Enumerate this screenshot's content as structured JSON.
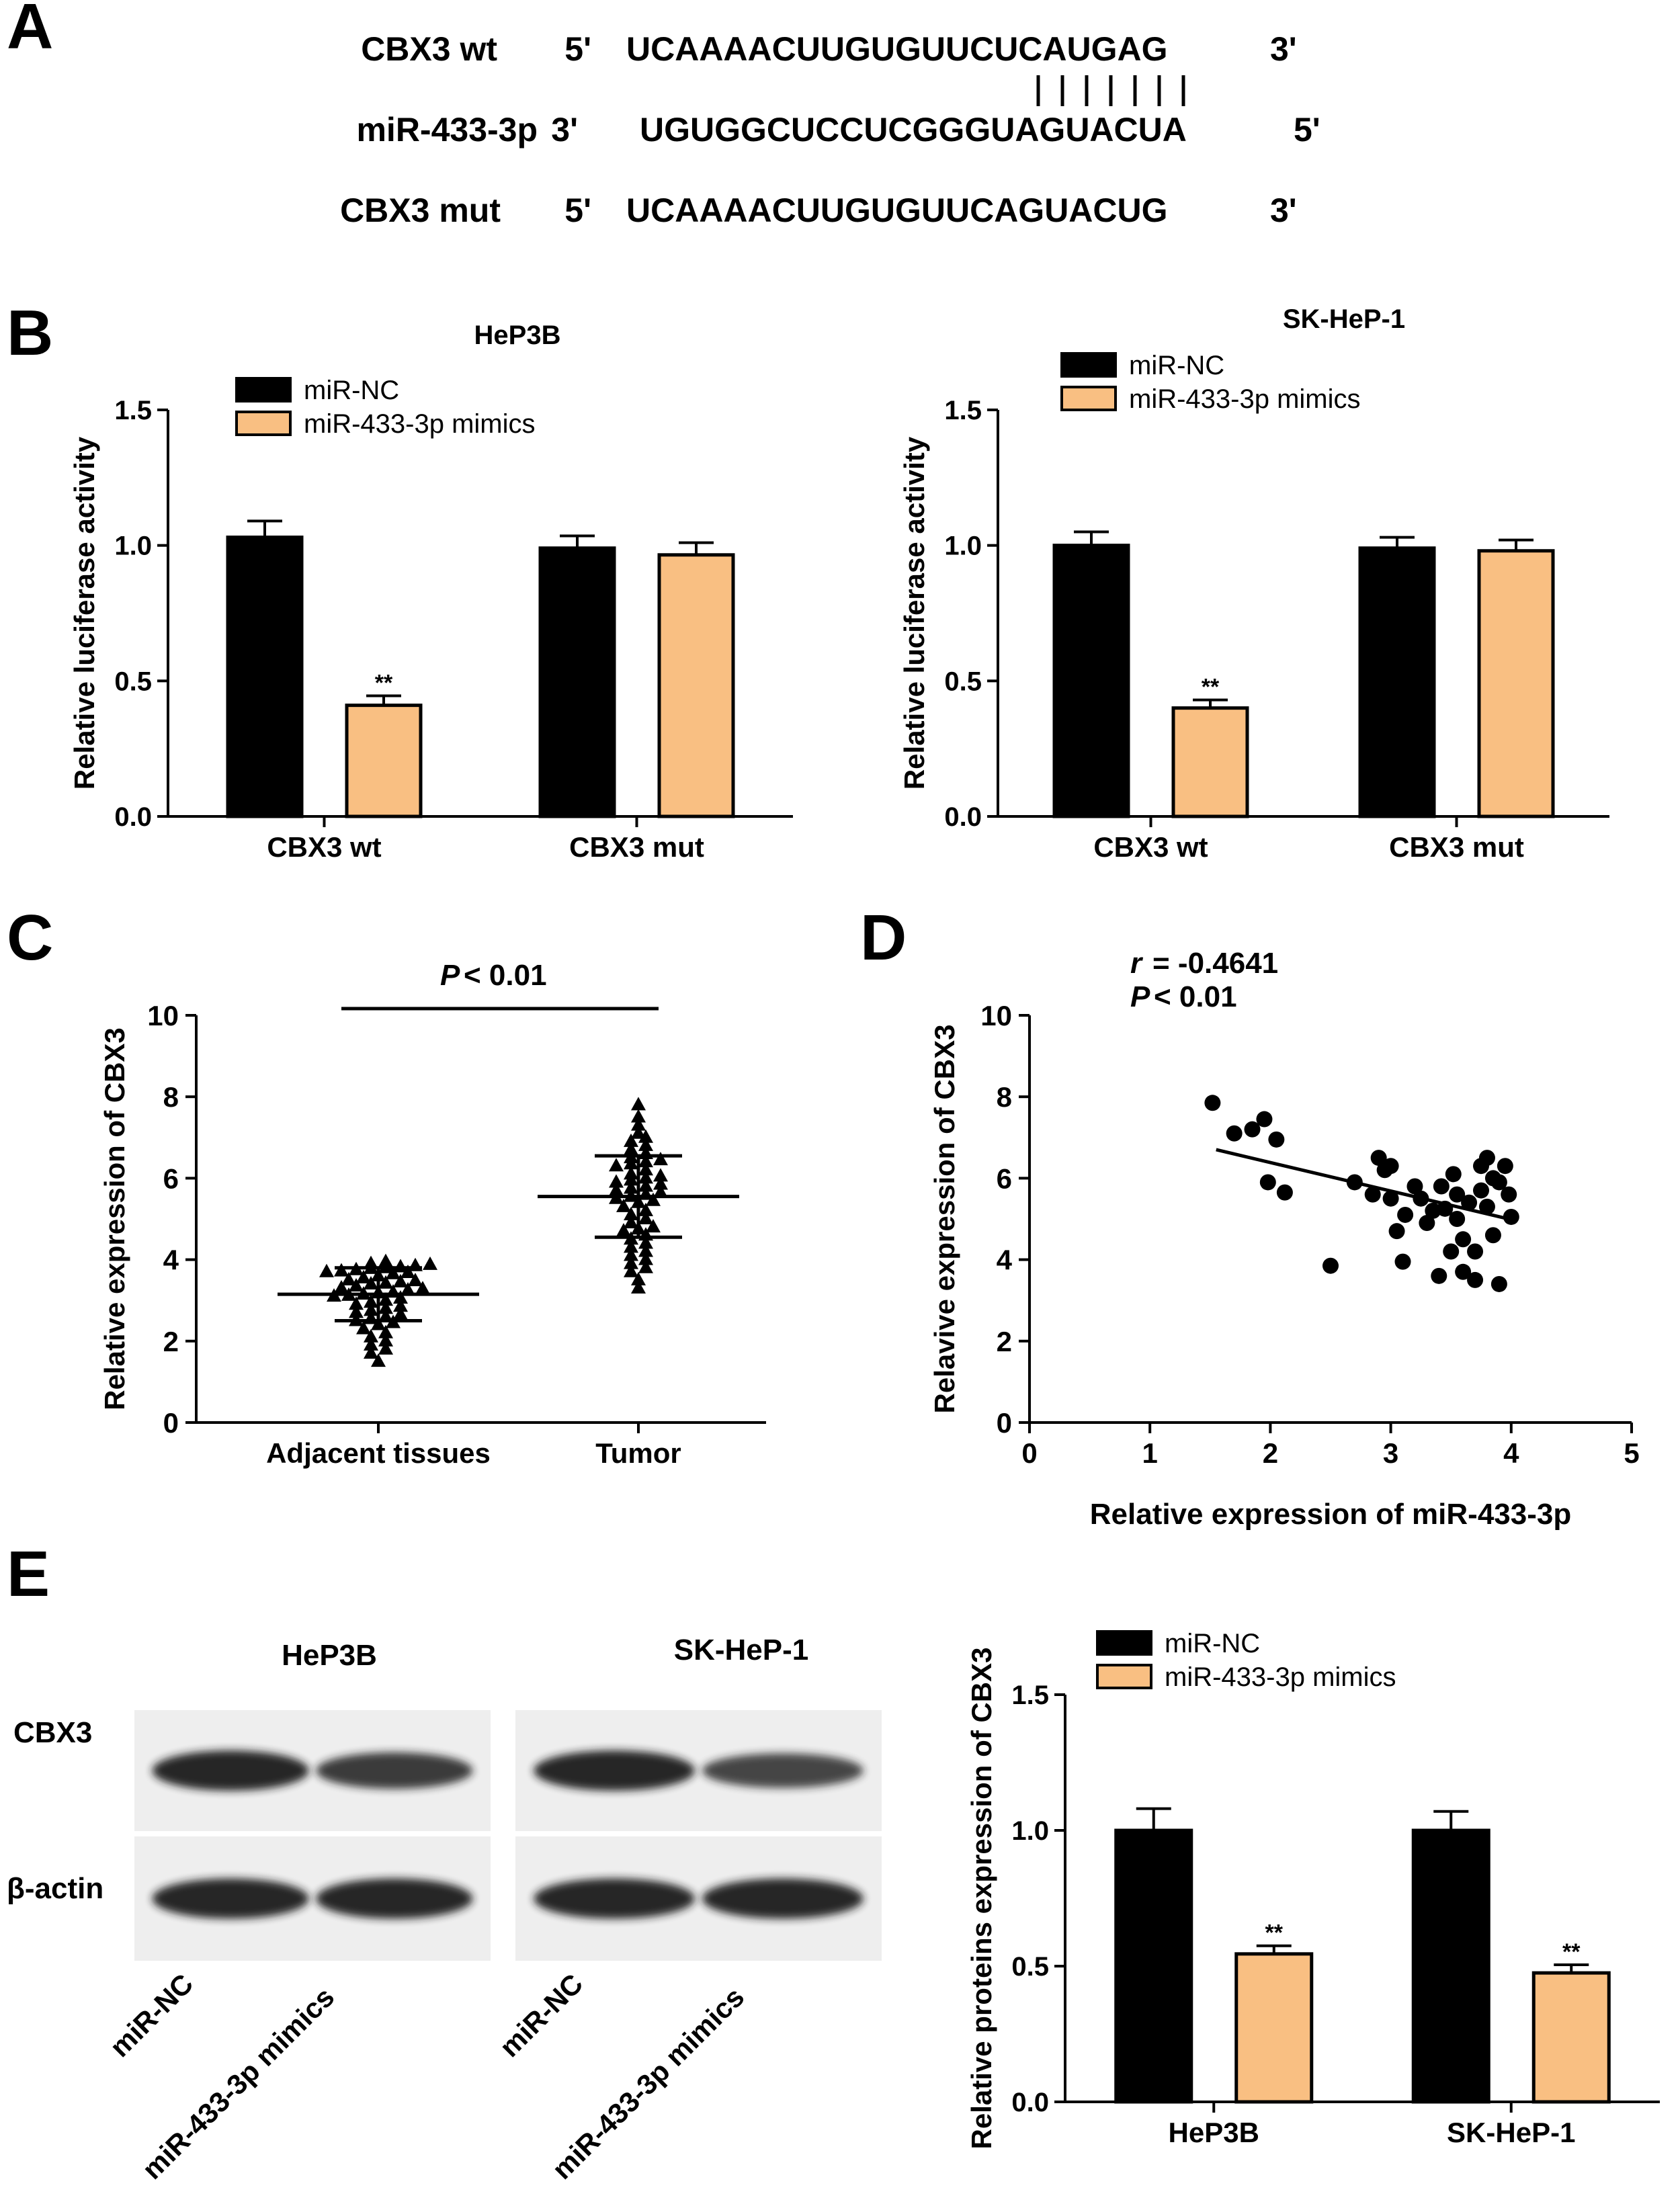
{
  "panel_letters": {
    "a": "A",
    "b": "B",
    "c": "C",
    "d": "D",
    "e": "E"
  },
  "colors": {
    "nc": "#000000",
    "mimic": "#F9BF82",
    "axis": "#000000",
    "blot_bg": "#eeeeee",
    "band": "#1e1e1e"
  },
  "sequence": {
    "rows": [
      {
        "label": "CBX3 wt",
        "p5": "5'",
        "seq": "UCAAAACUUGUGUUCUCAUGAG",
        "p3": "3'"
      },
      {
        "label": "miR-433-3p",
        "p5": "3'",
        "seq": "UGUGGCUCCUCGGGUAGUACUA",
        "p3": "5'"
      },
      {
        "label": "CBX3  mut",
        "p5": "5'",
        "seq": "UCAAAACUUGUGUUCAGUACUG",
        "p3": "3'"
      }
    ],
    "pairing_marks": 7
  },
  "chart_data": [
    {
      "type": "bar",
      "panel": "B-left",
      "title": "HeP3B",
      "ylabel": "Relative luciferase activity",
      "xlabel": "",
      "categories": [
        "CBX3 wt",
        "CBX3 mut"
      ],
      "ylim": [
        0,
        1.5
      ],
      "yticks": [
        "0.0",
        "0.5",
        "1.0",
        "1.5"
      ],
      "series": [
        {
          "name": "miR-NC",
          "values": [
            1.03,
            0.99
          ],
          "errors": [
            0.06,
            0.045
          ]
        },
        {
          "name": "miR-433-3p mimics",
          "values": [
            0.41,
            0.965
          ],
          "errors": [
            0.035,
            0.045
          ]
        }
      ],
      "annotations": [
        {
          "category": 0,
          "series": 1,
          "text": "**"
        }
      ],
      "legend": "top-left"
    },
    {
      "type": "bar",
      "panel": "B-right",
      "title": "SK-HeP-1",
      "ylabel": "Relative luciferase activity",
      "xlabel": "",
      "categories": [
        "CBX3 wt",
        "CBX3 mut"
      ],
      "ylim": [
        0,
        1.5
      ],
      "yticks": [
        "0.0",
        "0.5",
        "1.0",
        "1.5"
      ],
      "series": [
        {
          "name": "miR-NC",
          "values": [
            1.0,
            0.99
          ],
          "errors": [
            0.05,
            0.04
          ]
        },
        {
          "name": "miR-433-3p mimics",
          "values": [
            0.4,
            0.98
          ],
          "errors": [
            0.03,
            0.04
          ]
        }
      ],
      "annotations": [
        {
          "category": 0,
          "series": 1,
          "text": "**"
        }
      ],
      "legend": "top-left"
    },
    {
      "type": "scatter",
      "panel": "C",
      "ylabel": "Relative expression of CBX3",
      "xlabel": "",
      "categories": [
        "Adjacent tissues",
        "Tumor"
      ],
      "ylim": [
        0,
        10
      ],
      "yticks": [
        "0",
        "2",
        "4",
        "6",
        "8",
        "10"
      ],
      "groups": [
        {
          "name": "Adjacent tissues",
          "mean": 3.15,
          "sd": 0.65,
          "values": [
            3.95,
            3.9,
            3.88,
            3.85,
            3.82,
            3.8,
            3.78,
            3.75,
            3.72,
            3.7,
            3.68,
            3.65,
            3.6,
            3.55,
            3.5,
            3.48,
            3.45,
            3.42,
            3.4,
            3.35,
            3.3,
            3.28,
            3.25,
            3.2,
            3.18,
            3.15,
            3.12,
            3.1,
            3.05,
            3.0,
            2.95,
            2.9,
            2.85,
            2.8,
            2.75,
            2.7,
            2.65,
            2.6,
            2.55,
            2.5,
            2.45,
            2.4,
            2.3,
            2.2,
            2.1,
            2.0,
            1.9,
            1.8,
            1.7,
            1.5
          ]
        },
        {
          "name": "Tumor",
          "mean": 5.55,
          "sd": 1.0,
          "values": [
            7.8,
            7.5,
            7.3,
            7.1,
            7.0,
            6.9,
            6.8,
            6.7,
            6.6,
            6.5,
            6.45,
            6.4,
            6.35,
            6.3,
            6.2,
            6.1,
            6.05,
            6.0,
            5.95,
            5.9,
            5.85,
            5.8,
            5.75,
            5.7,
            5.65,
            5.6,
            5.55,
            5.5,
            5.45,
            5.4,
            5.3,
            5.2,
            5.1,
            5.0,
            4.9,
            4.8,
            4.75,
            4.7,
            4.6,
            4.5,
            4.4,
            4.3,
            4.2,
            4.1,
            4.0,
            3.9,
            3.8,
            3.7,
            3.5,
            3.3
          ]
        }
      ],
      "annotation": {
        "p_symbol": "P",
        "p_rest": "< 0.01"
      }
    },
    {
      "type": "scatter",
      "panel": "D",
      "xlabel": "Relative expression of miR-433-3p",
      "ylabel": "Relavive expression of CBX3",
      "xlim": [
        0,
        5
      ],
      "ylim": [
        0,
        10
      ],
      "xticks": [
        "0",
        "1",
        "2",
        "3",
        "4",
        "5"
      ],
      "yticks": [
        "0",
        "2",
        "4",
        "6",
        "8",
        "10"
      ],
      "points": [
        [
          1.52,
          7.85
        ],
        [
          1.7,
          7.1
        ],
        [
          1.85,
          7.2
        ],
        [
          1.95,
          7.45
        ],
        [
          2.05,
          6.95
        ],
        [
          1.98,
          5.9
        ],
        [
          2.12,
          5.65
        ],
        [
          2.5,
          3.85
        ],
        [
          2.7,
          5.9
        ],
        [
          2.85,
          5.6
        ],
        [
          2.9,
          6.5
        ],
        [
          2.95,
          6.2
        ],
        [
          3.0,
          6.3
        ],
        [
          3.0,
          5.5
        ],
        [
          3.05,
          4.7
        ],
        [
          3.1,
          3.95
        ],
        [
          3.12,
          5.1
        ],
        [
          3.2,
          5.8
        ],
        [
          3.25,
          5.5
        ],
        [
          3.3,
          4.9
        ],
        [
          3.35,
          5.2
        ],
        [
          3.4,
          3.6
        ],
        [
          3.42,
          5.8
        ],
        [
          3.45,
          5.25
        ],
        [
          3.5,
          4.2
        ],
        [
          3.52,
          6.1
        ],
        [
          3.55,
          5.0
        ],
        [
          3.6,
          4.5
        ],
        [
          3.6,
          3.7
        ],
        [
          3.65,
          5.4
        ],
        [
          3.7,
          4.2
        ],
        [
          3.7,
          3.5
        ],
        [
          3.75,
          6.3
        ],
        [
          3.75,
          5.7
        ],
        [
          3.8,
          6.5
        ],
        [
          3.8,
          5.3
        ],
        [
          3.85,
          4.6
        ],
        [
          3.9,
          3.4
        ],
        [
          3.9,
          5.9
        ],
        [
          3.95,
          6.3
        ],
        [
          3.98,
          5.6
        ],
        [
          4.0,
          5.05
        ],
        [
          3.85,
          6.0
        ],
        [
          3.55,
          5.6
        ]
      ],
      "fit": {
        "x": [
          1.55,
          4.05
        ],
        "y": [
          6.7,
          4.95
        ]
      },
      "stats": {
        "r_symbol": "r",
        "r_rest": "= -0.4641",
        "p_symbol": "P",
        "p_rest": "< 0.01"
      }
    },
    {
      "type": "bar",
      "panel": "E-right",
      "title": "",
      "ylabel": "Relative proteins expression of CBX3",
      "xlabel": "",
      "categories": [
        "HeP3B",
        "SK-HeP-1"
      ],
      "ylim": [
        0,
        1.5
      ],
      "yticks": [
        "0.0",
        "0.5",
        "1.0",
        "1.5"
      ],
      "series": [
        {
          "name": "miR-NC",
          "values": [
            1.0,
            1.0
          ],
          "errors": [
            0.08,
            0.07
          ]
        },
        {
          "name": "miR-433-3p mimics",
          "values": [
            0.545,
            0.475
          ],
          "errors": [
            0.03,
            0.03
          ]
        }
      ],
      "annotations": [
        {
          "category": 0,
          "series": 1,
          "text": "**"
        },
        {
          "category": 1,
          "series": 1,
          "text": "**"
        }
      ],
      "legend": "top-left"
    }
  ],
  "blot": {
    "titles": [
      "HeP3B",
      "SK-HeP-1"
    ],
    "row_labels": [
      "CBX3",
      "β-actin"
    ],
    "lane_labels": [
      "miR-NC",
      "miR-433-3p mimics",
      "miR-NC",
      "miR-433-3p mimics"
    ],
    "band_intensity": {
      "CBX3": [
        1.0,
        0.8,
        1.0,
        0.7
      ],
      "β-actin": [
        1.0,
        1.0,
        1.0,
        1.0
      ]
    }
  }
}
